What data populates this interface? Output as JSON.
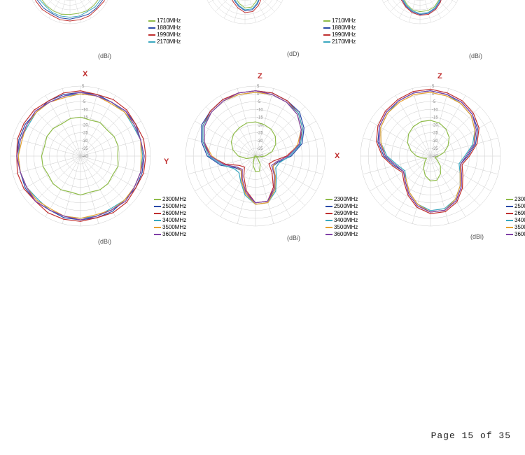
{
  "page_footer": "Page 15 of 35",
  "grid_color": "#cccccc",
  "background_color": "#ffffff",
  "radial_ticks": [
    5,
    0,
    -5,
    -10,
    -15,
    -20,
    -25,
    -30,
    -35,
    -40
  ],
  "spoke_count": 24,
  "row1": {
    "unit_a": "(dBi)",
    "unit_b": "(dD)",
    "unit_c": "(dBi)",
    "legend": [
      {
        "label": "1710MHz",
        "color": "#8fbc4a"
      },
      {
        "label": "1880MHz",
        "color": "#2a4aa8"
      },
      {
        "label": "1990MHz",
        "color": "#c03030"
      },
      {
        "label": "2170MHz",
        "color": "#3aa8c0"
      }
    ],
    "charts": [
      {
        "series": [
          {
            "color": "#8fbc4a",
            "values": [
              -4,
              -4,
              -5,
              -5,
              -5,
              -5,
              -5,
              -4,
              -4,
              -4,
              -4,
              -5,
              -5,
              -4,
              -4,
              -4,
              -4,
              -5,
              -4,
              -5,
              -5,
              -4,
              -4,
              -4
            ]
          },
          {
            "color": "#2a4aa8",
            "values": [
              0,
              0,
              -1,
              0,
              0,
              0,
              -1,
              0,
              0,
              0,
              0,
              -1,
              0,
              0,
              -1,
              0,
              0,
              0,
              0,
              -1,
              0,
              0,
              0,
              -1
            ]
          },
          {
            "color": "#c03030",
            "values": [
              2,
              2,
              2,
              1,
              2,
              2,
              2,
              2,
              2,
              1,
              2,
              2,
              2,
              2,
              1,
              2,
              2,
              2,
              2,
              2,
              1,
              2,
              2,
              2
            ]
          },
          {
            "color": "#3aa8c0",
            "values": [
              -2,
              -2,
              -2,
              -2,
              -3,
              -2,
              -2,
              -2,
              -2,
              -2,
              -3,
              -2,
              -2,
              -2,
              -2,
              -3,
              -2,
              -2,
              -2,
              -2,
              -2,
              -3,
              -2,
              -2
            ]
          }
        ]
      },
      {
        "series": [
          {
            "color": "#8fbc4a",
            "values": [
              -3,
              -3,
              -4,
              -5,
              -7,
              -10,
              -15,
              -20,
              -22,
              -20,
              -16,
              -12,
              -12,
              -16,
              -20,
              -22,
              -20,
              -15,
              -10,
              -7,
              -5,
              -4,
              -3,
              -3
            ]
          },
          {
            "color": "#2a4aa8",
            "values": [
              0,
              0,
              -1,
              -2,
              -4,
              -7,
              -12,
              -18,
              -20,
              -17,
              -13,
              -9,
              -9,
              -13,
              -17,
              -20,
              -18,
              -12,
              -7,
              -4,
              -2,
              -1,
              0,
              0
            ]
          },
          {
            "color": "#c03030",
            "values": [
              2,
              2,
              1,
              0,
              -3,
              -6,
              -11,
              -16,
              -18,
              -15,
              -11,
              -7,
              -7,
              -11,
              -15,
              -18,
              -16,
              -11,
              -6,
              -3,
              0,
              1,
              2,
              2
            ]
          },
          {
            "color": "#3aa8c0",
            "values": [
              -1,
              -1,
              -2,
              -3,
              -5,
              -8,
              -13,
              -19,
              -21,
              -18,
              -14,
              -10,
              -10,
              -14,
              -18,
              -21,
              -19,
              -13,
              -8,
              -5,
              -3,
              -2,
              -1,
              -1
            ]
          }
        ]
      },
      {
        "series": [
          {
            "color": "#8fbc4a",
            "values": [
              -2,
              -2,
              -3,
              -5,
              -8,
              -12,
              -17,
              -18,
              -15,
              -12,
              -9,
              -8,
              -8,
              -9,
              -12,
              -15,
              -18,
              -17,
              -12,
              -8,
              -5,
              -3,
              -2,
              -2
            ]
          },
          {
            "color": "#2a4aa8",
            "values": [
              0,
              0,
              -1,
              -2,
              -5,
              -9,
              -14,
              -16,
              -13,
              -10,
              -7,
              -5,
              -5,
              -7,
              -10,
              -13,
              -16,
              -14,
              -9,
              -5,
              -2,
              -1,
              0,
              0
            ]
          },
          {
            "color": "#c03030",
            "values": [
              2,
              2,
              1,
              -1,
              -4,
              -8,
              -12,
              -14,
              -12,
              -9,
              -6,
              -4,
              -4,
              -6,
              -9,
              -12,
              -14,
              -12,
              -8,
              -4,
              -1,
              1,
              2,
              2
            ]
          },
          {
            "color": "#3aa8c0",
            "values": [
              1,
              0,
              -1,
              -3,
              -6,
              -10,
              -15,
              -17,
              -14,
              -11,
              -8,
              -6,
              -6,
              -8,
              -11,
              -14,
              -17,
              -15,
              -10,
              -6,
              -3,
              -1,
              0,
              1
            ]
          }
        ]
      }
    ]
  },
  "row2": {
    "axis_a_primary": "X",
    "axis_a_secondary": "Y",
    "axis_b_primary": "Z",
    "axis_b_secondary": "X",
    "axis_c_primary": "Z",
    "unit": "(dBi)",
    "legend": [
      {
        "label": "2300MHz",
        "color": "#8fbc4a"
      },
      {
        "label": "2500MHz",
        "color": "#2a4aa8"
      },
      {
        "label": "2690MHz",
        "color": "#c03030"
      },
      {
        "label": "3400MHz",
        "color": "#3aa8c0"
      },
      {
        "label": "3500MHz",
        "color": "#e8a030"
      },
      {
        "label": "3600MHz",
        "color": "#8040a8"
      }
    ],
    "charts": [
      {
        "series": [
          {
            "color": "#8fbc4a",
            "values": [
              -15,
              -16,
              -15,
              -16,
              -15,
              -15,
              -16,
              -15,
              -16,
              -15,
              -15,
              -16,
              -15,
              -16,
              -15,
              -15,
              -16,
              -15,
              -15,
              -16,
              -15,
              -15,
              -16,
              -15
            ]
          },
          {
            "color": "#2a4aa8",
            "values": [
              1,
              1,
              0,
              1,
              1,
              0,
              1,
              1,
              1,
              0,
              1,
              1,
              1,
              1,
              0,
              1,
              1,
              0,
              1,
              1,
              1,
              0,
              1,
              1
            ]
          },
          {
            "color": "#c03030",
            "values": [
              2,
              1,
              2,
              2,
              1,
              2,
              2,
              2,
              1,
              2,
              2,
              1,
              2,
              2,
              2,
              1,
              2,
              2,
              1,
              2,
              2,
              2,
              1,
              2
            ]
          },
          {
            "color": "#3aa8c0",
            "values": [
              0,
              0,
              0,
              0,
              -1,
              0,
              0,
              0,
              0,
              0,
              -1,
              0,
              0,
              0,
              0,
              -1,
              0,
              0,
              0,
              0,
              -1,
              0,
              0,
              0
            ]
          },
          {
            "color": "#e8a030",
            "values": [
              0,
              0,
              -1,
              0,
              0,
              0,
              -1,
              0,
              0,
              0,
              0,
              -1,
              0,
              0,
              -1,
              0,
              0,
              0,
              0,
              -1,
              0,
              0,
              0,
              -1
            ]
          },
          {
            "color": "#8040a8",
            "values": [
              1,
              0,
              0,
              1,
              0,
              0,
              1,
              0,
              0,
              1,
              0,
              0,
              1,
              0,
              0,
              1,
              0,
              0,
              1,
              0,
              0,
              1,
              0,
              0
            ]
          }
        ]
      },
      {
        "series": [
          {
            "color": "#8fbc4a",
            "values": [
              -18,
              -19,
              -20,
              -22,
              -25,
              -29,
              -34,
              -38,
              -40,
              -38,
              -34,
              -30,
              -30,
              -34,
              -38,
              -40,
              -38,
              -34,
              -29,
              -25,
              -22,
              -20,
              -19,
              -18
            ]
          },
          {
            "color": "#2a4aa8",
            "values": [
              2,
              2,
              1,
              0,
              -4,
              -9,
              -17,
              -25,
              -27,
              -22,
              -15,
              -10,
              -10,
              -15,
              -22,
              -27,
              -25,
              -17,
              -9,
              -4,
              0,
              1,
              2,
              2
            ]
          },
          {
            "color": "#c03030",
            "values": [
              2,
              2,
              1,
              -1,
              -5,
              -11,
              -20,
              -28,
              -30,
              -25,
              -17,
              -10,
              -10,
              -17,
              -25,
              -30,
              -28,
              -20,
              -11,
              -5,
              -1,
              1,
              2,
              2
            ]
          },
          {
            "color": "#3aa8c0",
            "values": [
              1,
              1,
              0,
              -1,
              -5,
              -10,
              -18,
              -24,
              -25,
              -21,
              -14,
              -9,
              -9,
              -14,
              -21,
              -25,
              -24,
              -18,
              -10,
              -5,
              -1,
              0,
              1,
              1
            ]
          },
          {
            "color": "#e8a030",
            "values": [
              1,
              1,
              0,
              -2,
              -6,
              -12,
              -19,
              -26,
              -27,
              -22,
              -15,
              -9,
              -9,
              -15,
              -22,
              -27,
              -26,
              -19,
              -12,
              -6,
              -2,
              0,
              1,
              1
            ]
          },
          {
            "color": "#8040a8",
            "values": [
              2,
              1,
              0,
              -2,
              -6,
              -11,
              -19,
              -26,
              -28,
              -23,
              -16,
              -10,
              -10,
              -16,
              -23,
              -28,
              -26,
              -19,
              -11,
              -6,
              -2,
              0,
              1,
              2
            ]
          }
        ]
      },
      {
        "series": [
          {
            "color": "#8fbc4a",
            "values": [
              -17,
              -18,
              -20,
              -23,
              -27,
              -31,
              -35,
              -37,
              -35,
              -31,
              -27,
              -24,
              -24,
              -27,
              -31,
              -35,
              -37,
              -35,
              -31,
              -27,
              -23,
              -20,
              -18,
              -17
            ]
          },
          {
            "color": "#2a4aa8",
            "values": [
              2,
              1,
              0,
              -2,
              -5,
              -10,
              -16,
              -20,
              -17,
              -12,
              -7,
              -4,
              -4,
              -7,
              -12,
              -17,
              -20,
              -16,
              -10,
              -5,
              -2,
              0,
              1,
              2
            ]
          },
          {
            "color": "#c03030",
            "values": [
              3,
              2,
              1,
              -1,
              -4,
              -9,
              -15,
              -19,
              -16,
              -11,
              -6,
              -3,
              -3,
              -6,
              -11,
              -16,
              -19,
              -15,
              -9,
              -4,
              -1,
              1,
              2,
              3
            ]
          },
          {
            "color": "#3aa8c0",
            "values": [
              2,
              1,
              -1,
              -3,
              -7,
              -12,
              -18,
              -21,
              -18,
              -13,
              -8,
              -5,
              -5,
              -8,
              -13,
              -18,
              -21,
              -18,
              -12,
              -7,
              -3,
              -1,
              1,
              2
            ]
          },
          {
            "color": "#e8a030",
            "values": [
              1,
              0,
              -1,
              -3,
              -7,
              -11,
              -17,
              -20,
              -18,
              -13,
              -8,
              -4,
              -4,
              -8,
              -13,
              -18,
              -20,
              -17,
              -11,
              -7,
              -3,
              -1,
              0,
              1
            ]
          },
          {
            "color": "#8040a8",
            "values": [
              2,
              1,
              0,
              -2,
              -6,
              -11,
              -17,
              -20,
              -17,
              -12,
              -7,
              -4,
              -4,
              -7,
              -12,
              -17,
              -20,
              -17,
              -11,
              -6,
              -2,
              0,
              1,
              2
            ]
          }
        ]
      }
    ]
  }
}
